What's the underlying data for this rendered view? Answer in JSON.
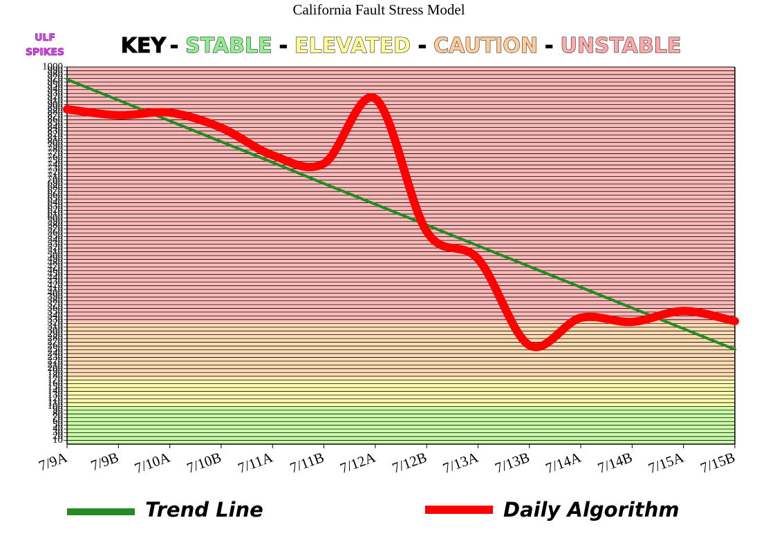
{
  "chart_data": {
    "type": "line",
    "title": "California Fault Stress Model",
    "badge": [
      "ULF",
      "SPIKES"
    ],
    "key": {
      "label": "KEY",
      "separator": "-",
      "items": [
        {
          "label": "STABLE",
          "color": "#90ee90",
          "band": [
            0,
            100
          ],
          "band_color": "#ccffaa"
        },
        {
          "label": "ELEVATED",
          "color": "#ffff99",
          "band": [
            100,
            175
          ],
          "band_color": "#ffffb0"
        },
        {
          "label": "CAUTION",
          "color": "#ffcc99",
          "band": [
            175,
            325
          ],
          "band_color": "#ffdcb4"
        },
        {
          "label": "UNSTABLE",
          "color": "#ffaaaa",
          "band": [
            325,
            1000
          ],
          "band_color": "#ffbaba"
        }
      ]
    },
    "categories": [
      "7/9A",
      "7/9B",
      "7/10A",
      "7/10B",
      "7/11A",
      "7/11B",
      "7/12A",
      "7/12B",
      "7/13A",
      "7/13B",
      "7/14A",
      "7/14B",
      "7/15A",
      "7/15B"
    ],
    "series": [
      {
        "name": "Trend Line",
        "color": "#228b22",
        "width": 4,
        "values": [
          967,
          912,
          857,
          802,
          747,
          691,
          636,
          581,
          526,
          471,
          416,
          361,
          306,
          251
        ]
      },
      {
        "name": "Daily Algorithm",
        "color": "#ff0000",
        "width": 12,
        "smooth": true,
        "values": [
          888,
          872,
          879,
          839,
          766,
          744,
          916,
          564,
          491,
          262,
          335,
          324,
          353,
          326
        ]
      }
    ],
    "ylim": [
      0,
      1000
    ],
    "yticks": [
      10,
      20,
      30,
      40,
      50,
      60,
      70,
      80,
      90,
      100,
      110,
      120,
      130,
      140,
      150,
      160,
      170,
      180,
      190,
      200,
      210,
      220,
      230,
      240,
      250,
      260,
      270,
      280,
      290,
      300,
      310,
      320,
      330,
      340,
      350,
      360,
      370,
      380,
      390,
      400,
      410,
      420,
      430,
      440,
      450,
      460,
      470,
      480,
      490,
      500,
      510,
      520,
      530,
      540,
      550,
      560,
      570,
      580,
      590,
      600,
      610,
      620,
      630,
      640,
      650,
      660,
      670,
      680,
      690,
      700,
      710,
      720,
      730,
      740,
      750,
      760,
      770,
      780,
      790,
      800,
      810,
      820,
      830,
      840,
      850,
      860,
      870,
      880,
      890,
      900,
      910,
      920,
      930,
      940,
      950,
      960,
      970,
      980,
      990,
      1000
    ],
    "grid": true
  }
}
